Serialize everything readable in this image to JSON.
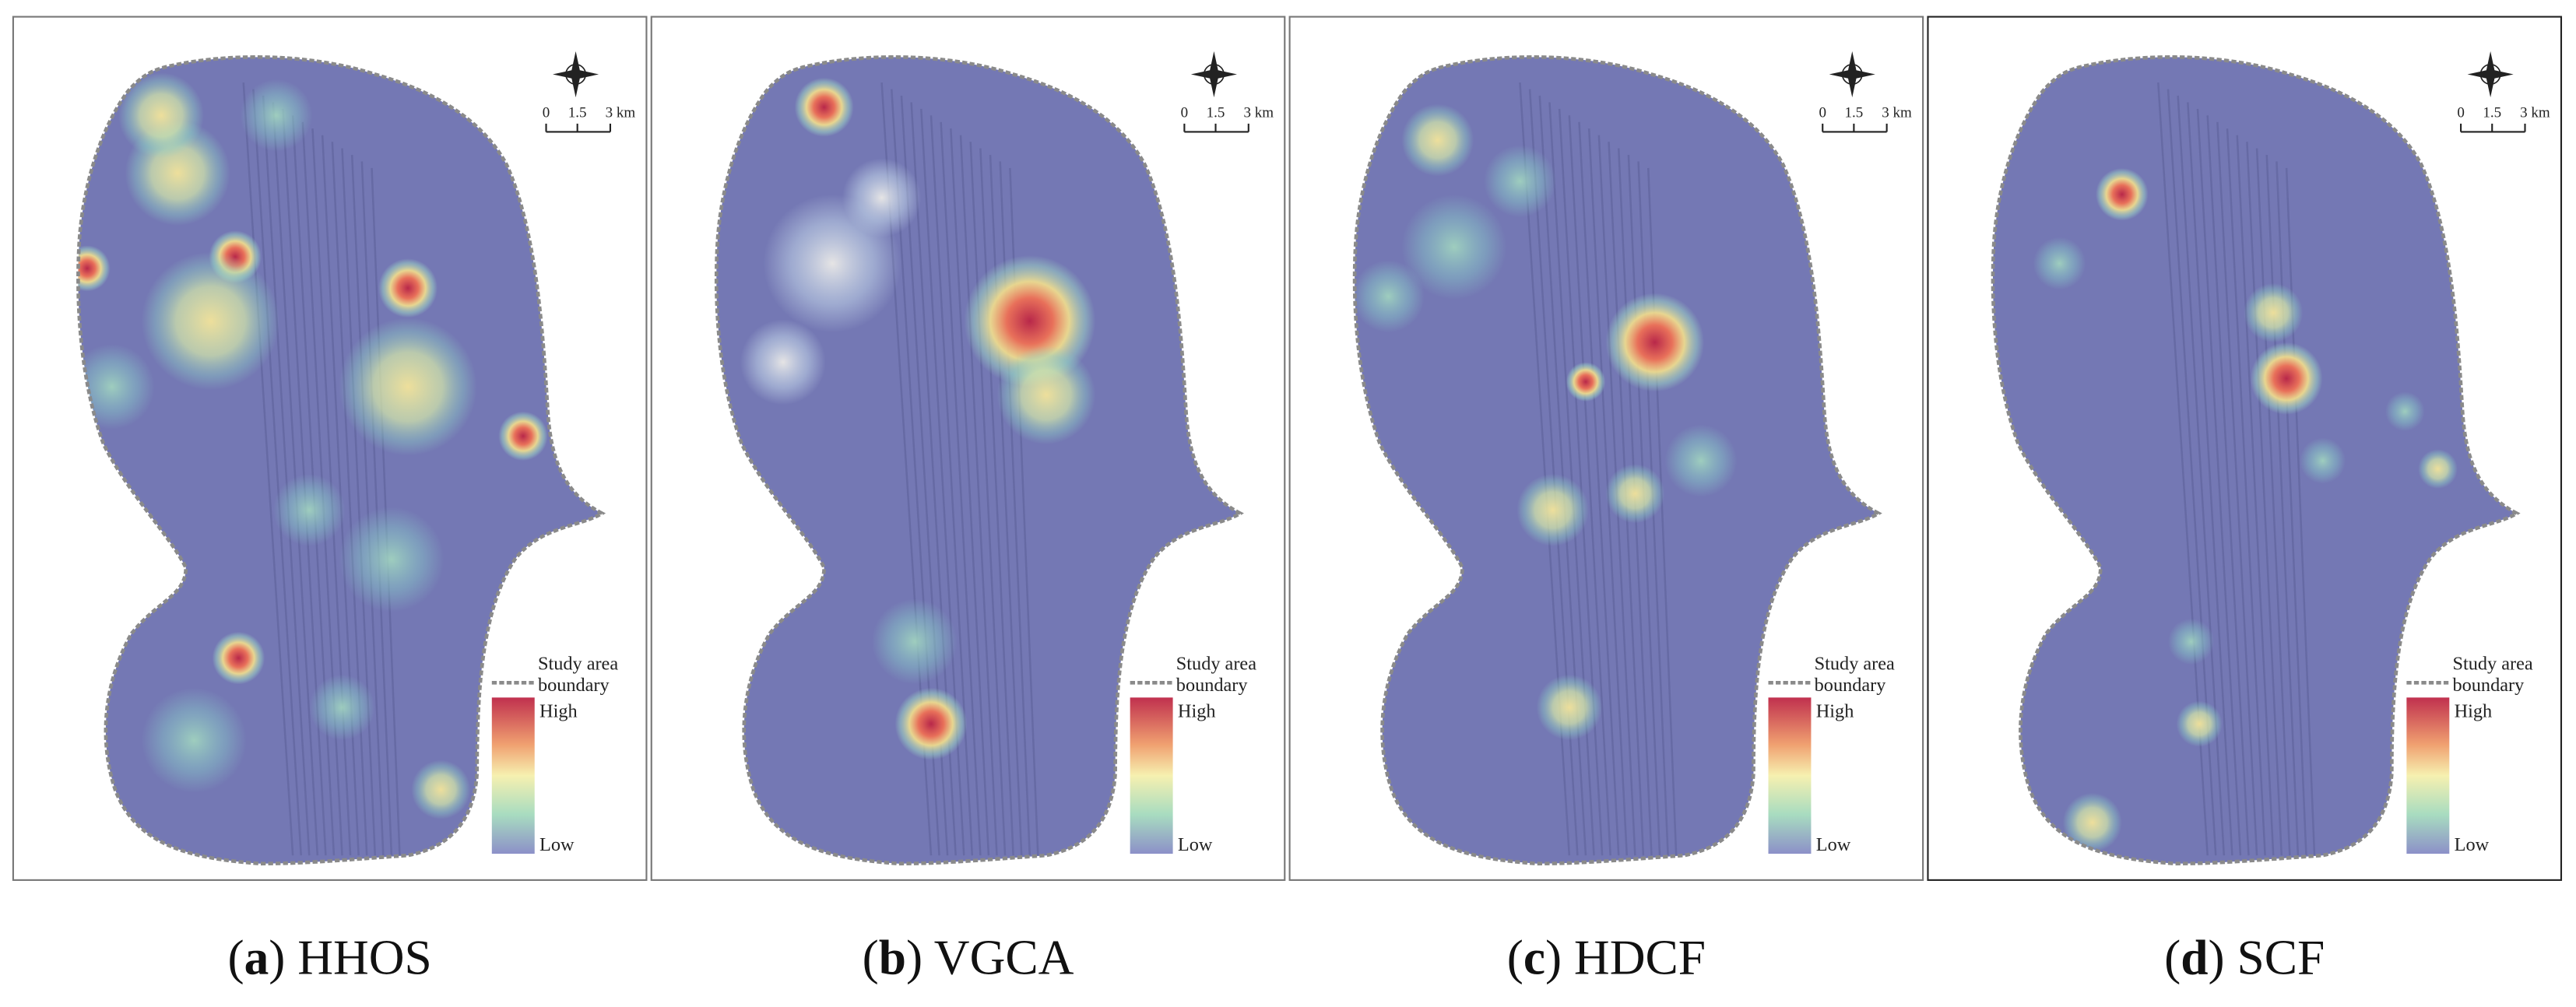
{
  "panels": [
    {
      "caption": {
        "open": "(",
        "letter": "a",
        "rest": ") HHOS"
      },
      "scale_labels": [
        "0",
        "1.5",
        "3 km"
      ],
      "legend": {
        "boundary": [
          "Study area",
          "boundary"
        ],
        "high": "High",
        "low": "Low"
      }
    },
    {
      "caption": {
        "open": "(",
        "letter": "b",
        "rest": ") VGCA"
      },
      "scale_labels": [
        "0",
        "1.5",
        "3 km"
      ],
      "legend": {
        "boundary": [
          "Study area",
          "boundary"
        ],
        "high": "High",
        "low": "Low"
      }
    },
    {
      "caption": {
        "open": "(",
        "letter": "c",
        "rest": ") HDCF"
      },
      "scale_labels": [
        "0",
        "1.5",
        "3 km"
      ],
      "legend": {
        "boundary": [
          "Study area",
          "boundary"
        ],
        "high": "High",
        "low": "Low"
      }
    },
    {
      "caption": {
        "open": "(",
        "letter": "d",
        "rest": ") SCF"
      },
      "scale_labels": [
        "0",
        "1.5",
        "3 km"
      ],
      "legend": {
        "boundary": [
          "Study area",
          "boundary"
        ],
        "high": "High",
        "low": "Low"
      }
    }
  ]
}
